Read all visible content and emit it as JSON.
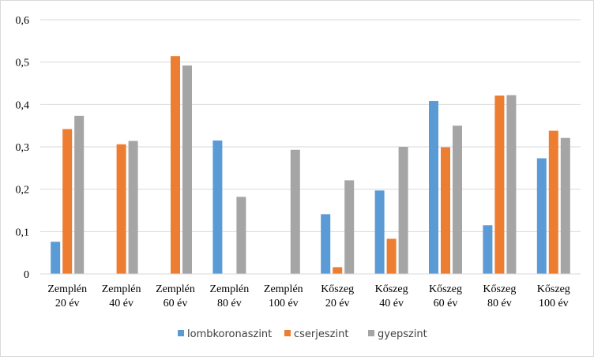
{
  "chart_data": {
    "type": "bar",
    "title": "",
    "xlabel": "",
    "ylabel": "",
    "ylim": [
      0,
      0.6
    ],
    "yticks": [
      "0",
      "0,1",
      "0,2",
      "0,3",
      "0,4",
      "0,5",
      "0,6"
    ],
    "grid": true,
    "legend_position": "bottom",
    "categories": [
      [
        "Zemplén",
        "20 év"
      ],
      [
        "Zemplén",
        "40 év"
      ],
      [
        "Zemplén",
        "60 év"
      ],
      [
        "Zemplén",
        "80 év"
      ],
      [
        "Zemplén",
        "100 év"
      ],
      [
        "Kőszeg",
        "20 év"
      ],
      [
        "Kőszeg",
        "40 év"
      ],
      [
        "Kőszeg",
        "60 év"
      ],
      [
        "Kőszeg",
        "80 év"
      ],
      [
        "Kőszeg",
        "100 év"
      ]
    ],
    "series": [
      {
        "name": "lombkoronaszint",
        "color": "#5b9bd5",
        "values": [
          0.076,
          0,
          0,
          0.315,
          0,
          0.141,
          0.197,
          0.408,
          0.115,
          0.273
        ]
      },
      {
        "name": "cserjeszint",
        "color": "#ed7d31",
        "values": [
          0.342,
          0.306,
          0.514,
          0,
          0,
          0.016,
          0.083,
          0.299,
          0.421,
          0.338
        ]
      },
      {
        "name": "gyepszint",
        "color": "#a5a5a5",
        "values": [
          0.373,
          0.314,
          0.492,
          0.182,
          0.293,
          0.221,
          0.3,
          0.35,
          0.422,
          0.321
        ]
      }
    ]
  }
}
